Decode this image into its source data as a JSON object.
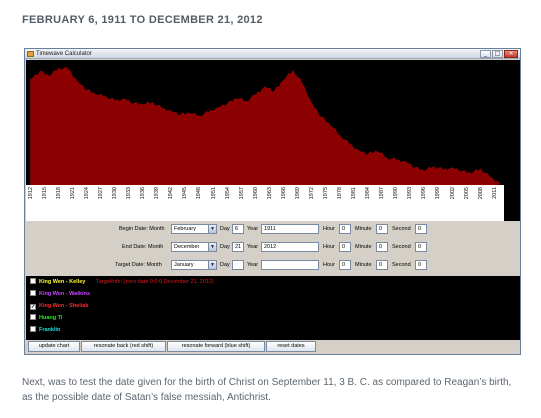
{
  "heading": "FEBRUARY 6, 1911 TO DECEMBER 21, 2012",
  "window": {
    "title": "Timewave Calculator",
    "minimize_glyph": "_",
    "maximize_glyph": "□",
    "close_glyph": "×"
  },
  "colors": {
    "wave_fill": "#8b0000",
    "wave_stroke": "#b00000",
    "chart_bg": "#000000"
  },
  "chart_data": {
    "type": "area",
    "title": "",
    "xlabel": "",
    "ylabel": "",
    "x": [
      1912,
      1914,
      1916,
      1918,
      1920,
      1922,
      1924,
      1926,
      1928,
      1930,
      1932,
      1934,
      1936,
      1938,
      1940,
      1942,
      1944,
      1946,
      1948,
      1950,
      1952,
      1954,
      1956,
      1958,
      1960,
      1962,
      1964,
      1966,
      1968,
      1970,
      1972,
      1974,
      1976,
      1978,
      1980,
      1982,
      1984,
      1986,
      1988,
      1990,
      1992,
      1994,
      1996,
      1998,
      2000,
      2002,
      2004,
      2006,
      2008,
      2010,
      2012
    ],
    "values": [
      0.86,
      0.92,
      0.88,
      0.95,
      0.94,
      0.84,
      0.77,
      0.73,
      0.72,
      0.68,
      0.7,
      0.66,
      0.65,
      0.67,
      0.62,
      0.6,
      0.57,
      0.58,
      0.56,
      0.59,
      0.63,
      0.66,
      0.7,
      0.68,
      0.73,
      0.8,
      0.76,
      0.85,
      0.93,
      0.82,
      0.66,
      0.55,
      0.48,
      0.4,
      0.33,
      0.28,
      0.25,
      0.27,
      0.22,
      0.2,
      0.19,
      0.14,
      0.11,
      0.15,
      0.12,
      0.14,
      0.11,
      0.09,
      0.13,
      0.06,
      0.02
    ],
    "xlim": [
      1911,
      2013
    ],
    "ylim": [
      0,
      1
    ],
    "tick_labels": [
      "1912",
      "1915",
      "1918",
      "1921",
      "1924",
      "1927",
      "1930",
      "1933",
      "1936",
      "1939",
      "1942",
      "1945",
      "1948",
      "1951",
      "1954",
      "1957",
      "1960",
      "1963",
      "1966",
      "1969",
      "1972",
      "1975",
      "1978",
      "1981",
      "1984",
      "1987",
      "1990",
      "1993",
      "1996",
      "1999",
      "2002",
      "2005",
      "2008",
      "2011"
    ],
    "grid": false,
    "legend": "none"
  },
  "form": {
    "begin": {
      "label": "Begin Date: Month",
      "month": "February",
      "day_label": "Day",
      "day": "6",
      "year_label": "Year",
      "year": "1911",
      "hour_label": "Hour",
      "hour": "0",
      "minute_label": "Minute",
      "minute": "0",
      "second_label": "Second",
      "second": "0"
    },
    "end": {
      "label": "End Date: Month",
      "month": "December",
      "day_label": "Day",
      "day": "21",
      "year_label": "Year",
      "year": "2012",
      "hour_label": "Hour",
      "hour": "0",
      "minute_label": "Minute",
      "minute": "0",
      "second_label": "Second",
      "second": "0"
    },
    "target": {
      "label": "Target Date: Month",
      "month": "January",
      "day_label": "Day",
      "day": "",
      "year_label": "Year",
      "year": "",
      "hour_label": "Hour",
      "hour": "0",
      "minute_label": "Minute",
      "minute": "0",
      "second_label": "Second",
      "second": "0"
    },
    "combo_arrow": "▼"
  },
  "legend": {
    "target_info": "TargetInfo: (zero date 0:0:0 December 21, 2012)",
    "items": [
      {
        "label": "King Wen - Kelley",
        "color": "#ffff33",
        "checked": false,
        "check_glyph": ""
      },
      {
        "label": "King Wen - Watkins",
        "color": "#cc44ff",
        "checked": false,
        "check_glyph": ""
      },
      {
        "label": "King Wen - Sheliak",
        "color": "#ff2a2a",
        "checked": true,
        "check_glyph": "✓"
      },
      {
        "label": "Huang Ti",
        "color": "#22ee22",
        "checked": false,
        "check_glyph": ""
      },
      {
        "label": "Franklin",
        "color": "#22dddd",
        "checked": false,
        "check_glyph": ""
      }
    ]
  },
  "buttons": {
    "update": "update chart",
    "back": "resonate back (red shift)",
    "forward": "resonate forward (blue shift)",
    "reset": "reset dates"
  },
  "caption": "Next, was to test the date given for the birth of Christ on September 11, 3 B. C. as compared to Reagan’s birth, as the possible date of Satan’s false messiah, Antichrist."
}
